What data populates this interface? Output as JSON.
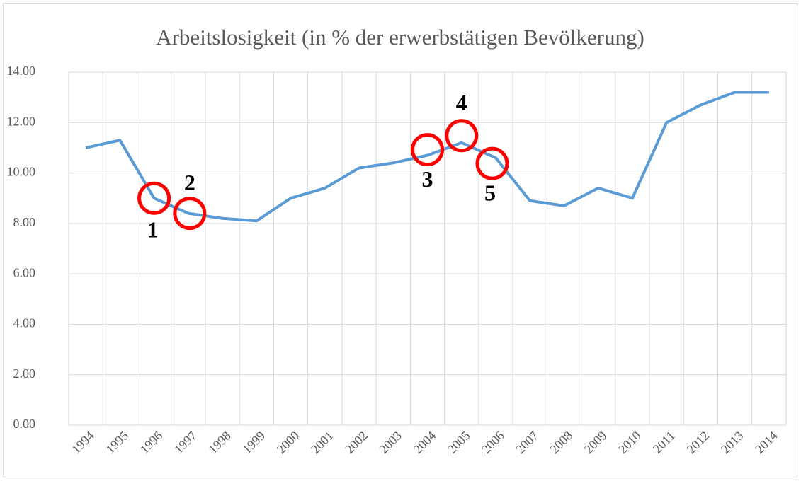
{
  "chart_data": {
    "type": "line",
    "title": "Arbeitslosigkeit (in % der erwerbstätigen Bevölkerung)",
    "categories": [
      "1994",
      "1995",
      "1996",
      "1997",
      "1998",
      "1999",
      "2000",
      "2001",
      "2002",
      "2003",
      "2004",
      "2005",
      "2006",
      "2007",
      "2008",
      "2009",
      "2010",
      "2011",
      "2012",
      "2013",
      "2014"
    ],
    "series": [
      {
        "color": "#5b9bd5",
        "values": [
          11.0,
          11.3,
          9.0,
          8.4,
          8.2,
          8.1,
          9.0,
          9.4,
          10.2,
          10.4,
          10.7,
          11.2,
          10.6,
          8.9,
          8.7,
          9.4,
          9.0,
          12.0,
          12.7,
          13.2,
          13.2
        ]
      }
    ],
    "ylim": [
      0,
      14
    ],
    "yticks": [
      {
        "value": 0,
        "label": "0.00"
      },
      {
        "value": 2,
        "label": "2.00"
      },
      {
        "value": 4,
        "label": "4.00"
      },
      {
        "value": 6,
        "label": "6.00"
      },
      {
        "value": 8,
        "label": "8.00"
      },
      {
        "value": 10,
        "label": "10.00"
      },
      {
        "value": 12,
        "label": "12.00"
      },
      {
        "value": 14,
        "label": "14.00"
      }
    ],
    "grid": true,
    "annotations": [
      {
        "text": "1",
        "category": "1996"
      },
      {
        "text": "2",
        "category": "1997"
      },
      {
        "text": "3",
        "category": "2004"
      },
      {
        "text": "4",
        "category": "2005"
      },
      {
        "text": "5",
        "category": "2006"
      }
    ],
    "annotation_color": "#ff0000"
  }
}
